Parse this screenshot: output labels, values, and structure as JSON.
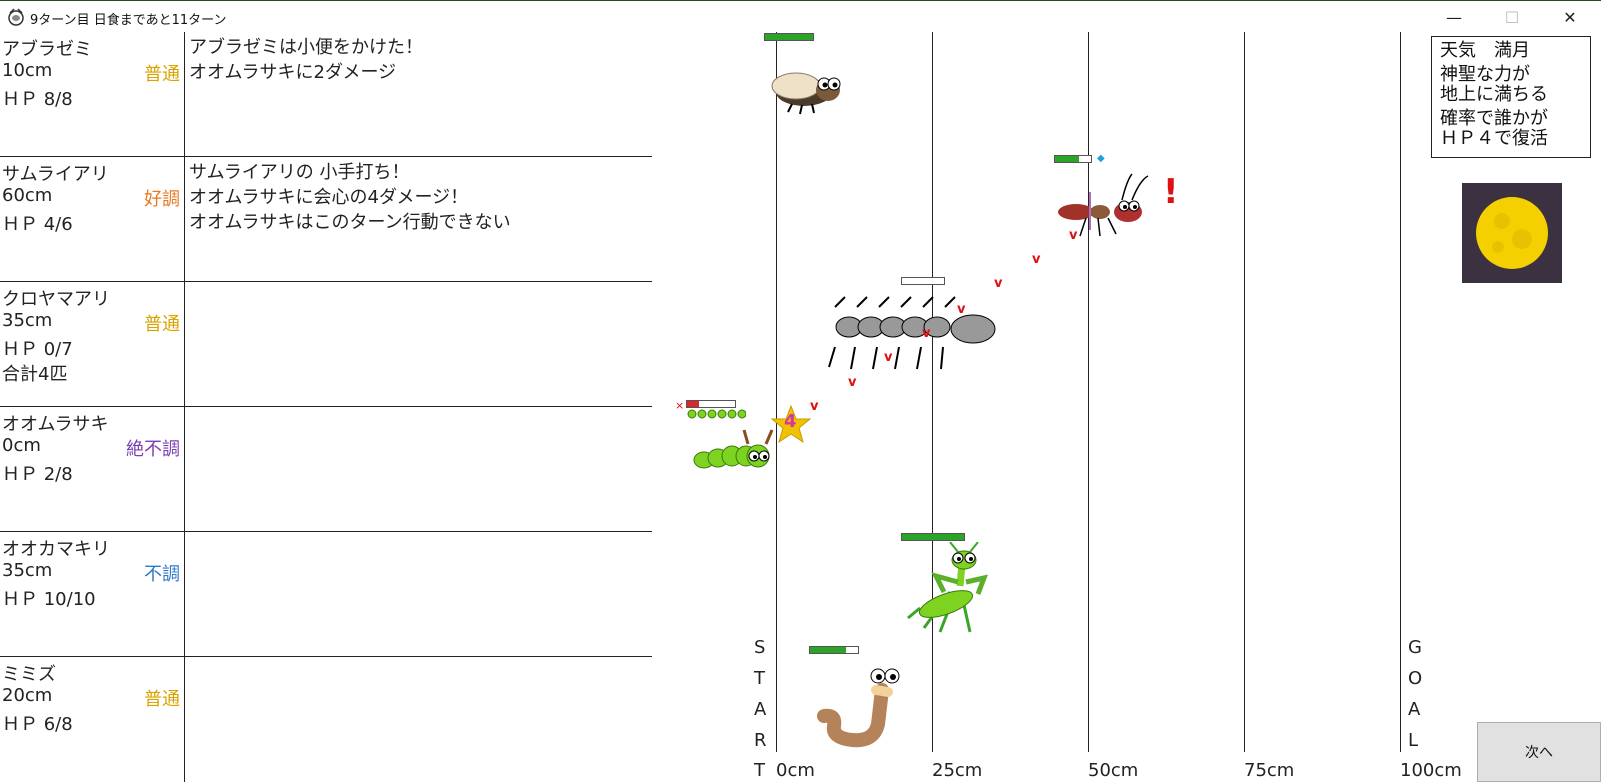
{
  "window": {
    "title": "9ターン目 日食まであと11ターン",
    "minimize": "—",
    "maximize": "☐",
    "close": "✕"
  },
  "colors": {
    "普通": "#d9a300",
    "好調": "#e8781e",
    "絶不調": "#7a3fb0",
    "不調": "#2e78c8",
    "hp_green": "#2aa52a",
    "hp_red": "#d42a2a",
    "log_marker": "#d11"
  },
  "creatures": [
    {
      "name": "アブラゼミ",
      "dist": "10cm",
      "condition": "普通",
      "hp": "ＨＰ 8/8",
      "extra": "",
      "log": [
        "アブラゼミは小便をかけた！",
        "オオムラサキに2ダメージ"
      ]
    },
    {
      "name": "サムライアリ",
      "dist": "60cm",
      "condition": "好調",
      "hp": "ＨＰ 4/6",
      "extra": "",
      "log": [
        "サムライアリの 小手打ち！",
        "オオムラサキに会心の4ダメージ！",
        "オオムラサキはこのターン行動できない"
      ]
    },
    {
      "name": "クロヤマアリ",
      "dist": "35cm",
      "condition": "普通",
      "hp": "ＨＰ 0/7",
      "extra": "合計4匹",
      "log": []
    },
    {
      "name": "オオムラサキ",
      "dist": "0cm",
      "condition": "絶不調",
      "hp": "ＨＰ 2/8",
      "extra": "",
      "log": []
    },
    {
      "name": "オオカマキリ",
      "dist": "35cm",
      "condition": "不調",
      "hp": "ＨＰ 10/10",
      "extra": "",
      "log": []
    },
    {
      "name": "ミミズ",
      "dist": "20cm",
      "condition": "普通",
      "hp": "ＨＰ 6/8",
      "extra": "",
      "log": []
    }
  ],
  "track": {
    "start_letters": [
      "S",
      "T",
      "A",
      "R",
      "T"
    ],
    "goal_letters": [
      "G",
      "O",
      "A",
      "L"
    ],
    "axis": [
      "0cm",
      "25cm",
      "50cm",
      "75cm",
      "100cm"
    ],
    "hit_marker": "v",
    "damage_star": "4",
    "alert": "!"
  },
  "hp_fractions": {
    "cicada": 1.0,
    "samurai_ant": 0.67,
    "kuroyama_ant": 0.0,
    "butterfly": 0.25,
    "mantis": 1.0,
    "worm": 0.75
  },
  "weather": {
    "line1": "天気　満月",
    "line2": "神聖な力が",
    "line3": "地上に満ちる",
    "line4": "確率で誰かが",
    "line5": "ＨＰ４で復活"
  },
  "next_button": "次へ"
}
